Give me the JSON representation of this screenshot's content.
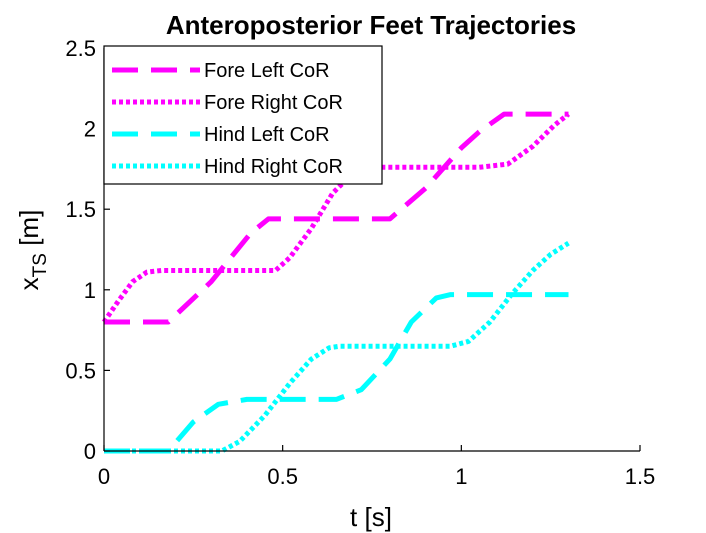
{
  "chart_data": {
    "type": "line",
    "title": "Anteroposterior Feet Trajectories",
    "xlabel": "t [s]",
    "ylabel_main": "x",
    "ylabel_sub": "TS",
    "ylabel_unit": " [m]",
    "xlim": [
      0,
      1.5
    ],
    "ylim": [
      0,
      2.5
    ],
    "xticks": [
      0,
      0.5,
      1,
      1.5
    ],
    "xtick_labels": [
      "0",
      "0.5",
      "1",
      "1.5"
    ],
    "yticks": [
      0,
      0.5,
      1,
      1.5,
      2,
      2.5
    ],
    "ytick_labels": [
      "0",
      "0.5",
      "1",
      "1.5",
      "2",
      "2.5"
    ],
    "grid": false,
    "legend_position": "top-left",
    "series": [
      {
        "name": "Fore Left CoR",
        "color": "#ff00ff",
        "style": "dashed",
        "x": [
          0,
          0.18,
          0.3,
          0.41,
          0.46,
          0.65,
          0.8,
          0.9,
          1.0,
          1.05,
          1.12,
          1.2,
          1.3
        ],
        "y": [
          0.8,
          0.8,
          1.05,
          1.35,
          1.44,
          1.44,
          1.44,
          1.63,
          1.88,
          1.98,
          2.09,
          2.09,
          2.09
        ]
      },
      {
        "name": "Fore Right CoR",
        "color": "#ff00ff",
        "style": "dotted",
        "x": [
          0,
          0.04,
          0.08,
          0.12,
          0.16,
          0.3,
          0.48,
          0.52,
          0.58,
          0.64,
          0.7,
          0.75,
          0.97,
          1.05,
          1.13,
          1.2,
          1.26,
          1.3
        ],
        "y": [
          0.8,
          0.93,
          1.05,
          1.11,
          1.12,
          1.12,
          1.12,
          1.2,
          1.38,
          1.6,
          1.73,
          1.76,
          1.76,
          1.76,
          1.78,
          1.89,
          2.02,
          2.09
        ]
      },
      {
        "name": "Hind Left CoR",
        "color": "#00ffff",
        "style": "dashed",
        "x": [
          0,
          0.18,
          0.25,
          0.32,
          0.4,
          0.48,
          0.65,
          0.72,
          0.8,
          0.86,
          0.93,
          0.97,
          1.3
        ],
        "y": [
          0,
          0,
          0.18,
          0.29,
          0.32,
          0.32,
          0.32,
          0.38,
          0.57,
          0.8,
          0.95,
          0.97,
          0.97
        ]
      },
      {
        "name": "Hind Right CoR",
        "color": "#00ffff",
        "style": "dotted",
        "x": [
          0,
          0.33,
          0.38,
          0.45,
          0.52,
          0.58,
          0.63,
          0.66,
          0.97,
          1.02,
          1.08,
          1.14,
          1.2,
          1.25,
          1.3
        ],
        "y": [
          0,
          0,
          0.06,
          0.22,
          0.42,
          0.57,
          0.64,
          0.65,
          0.65,
          0.68,
          0.8,
          0.97,
          1.12,
          1.22,
          1.29
        ]
      }
    ]
  }
}
